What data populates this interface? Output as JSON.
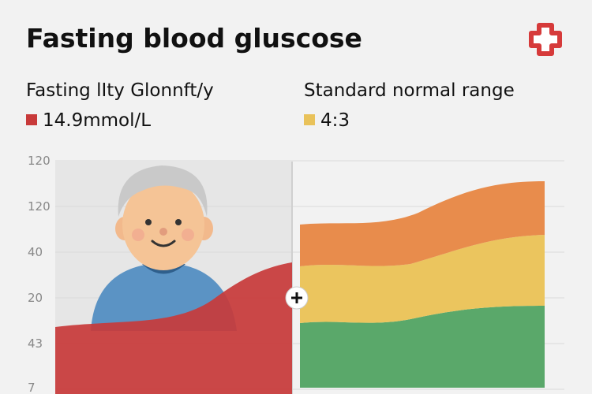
{
  "header": {
    "title": "Fasting blood gluscose"
  },
  "panels": [
    {
      "heading": "Fasting lIty Glonnft/y",
      "legend": "14.9mmol/L"
    },
    {
      "heading": "Standard normal range",
      "legend": "4:3"
    }
  ],
  "axis": {
    "labels": [
      "120",
      "120",
      "40",
      "20",
      "43",
      "7"
    ]
  }
}
